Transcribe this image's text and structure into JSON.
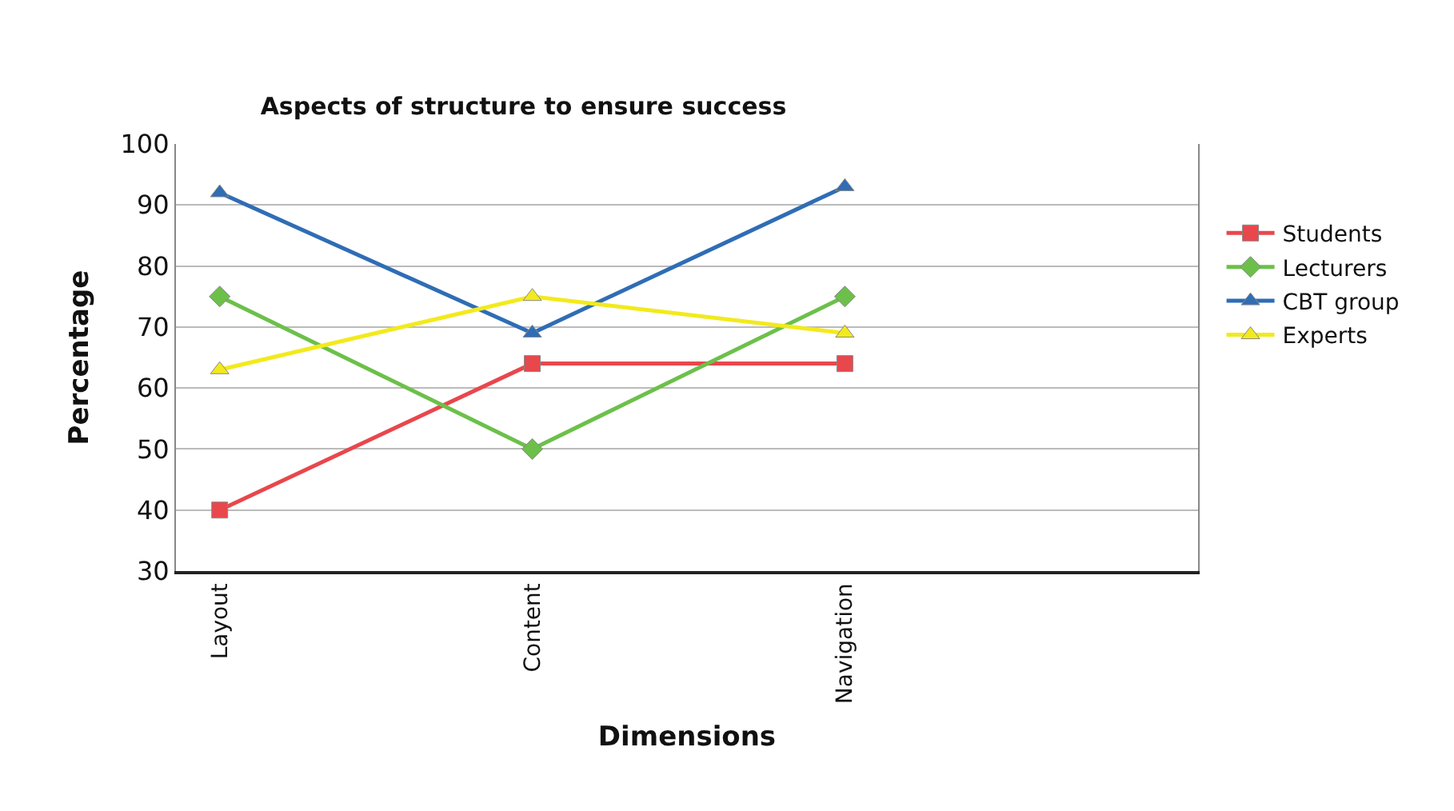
{
  "chart_data": {
    "type": "line",
    "title": "Aspects of structure to ensure success",
    "xlabel": "Dimensions",
    "ylabel": "Percentage",
    "categories": [
      "Layout",
      "Content",
      "Navigation",
      null
    ],
    "series": [
      {
        "name": "Students",
        "color": "#e8474c",
        "marker": "square",
        "values": [
          40,
          64,
          64,
          null
        ]
      },
      {
        "name": "Lecturers",
        "color": "#6cc04a",
        "marker": "diamond",
        "values": [
          75,
          50,
          75,
          null
        ]
      },
      {
        "name": "CBT group",
        "color": "#2f6db5",
        "marker": "triangle",
        "values": [
          92,
          69,
          93,
          null
        ]
      },
      {
        "name": "Experts",
        "color": "#f2ea1c",
        "marker": "triangle",
        "values": [
          63,
          75,
          69,
          null
        ]
      }
    ],
    "ylim": [
      30,
      100
    ],
    "yticks": [
      30,
      40,
      50,
      60,
      70,
      80,
      90,
      100
    ],
    "grid": "y",
    "legend": "right"
  }
}
